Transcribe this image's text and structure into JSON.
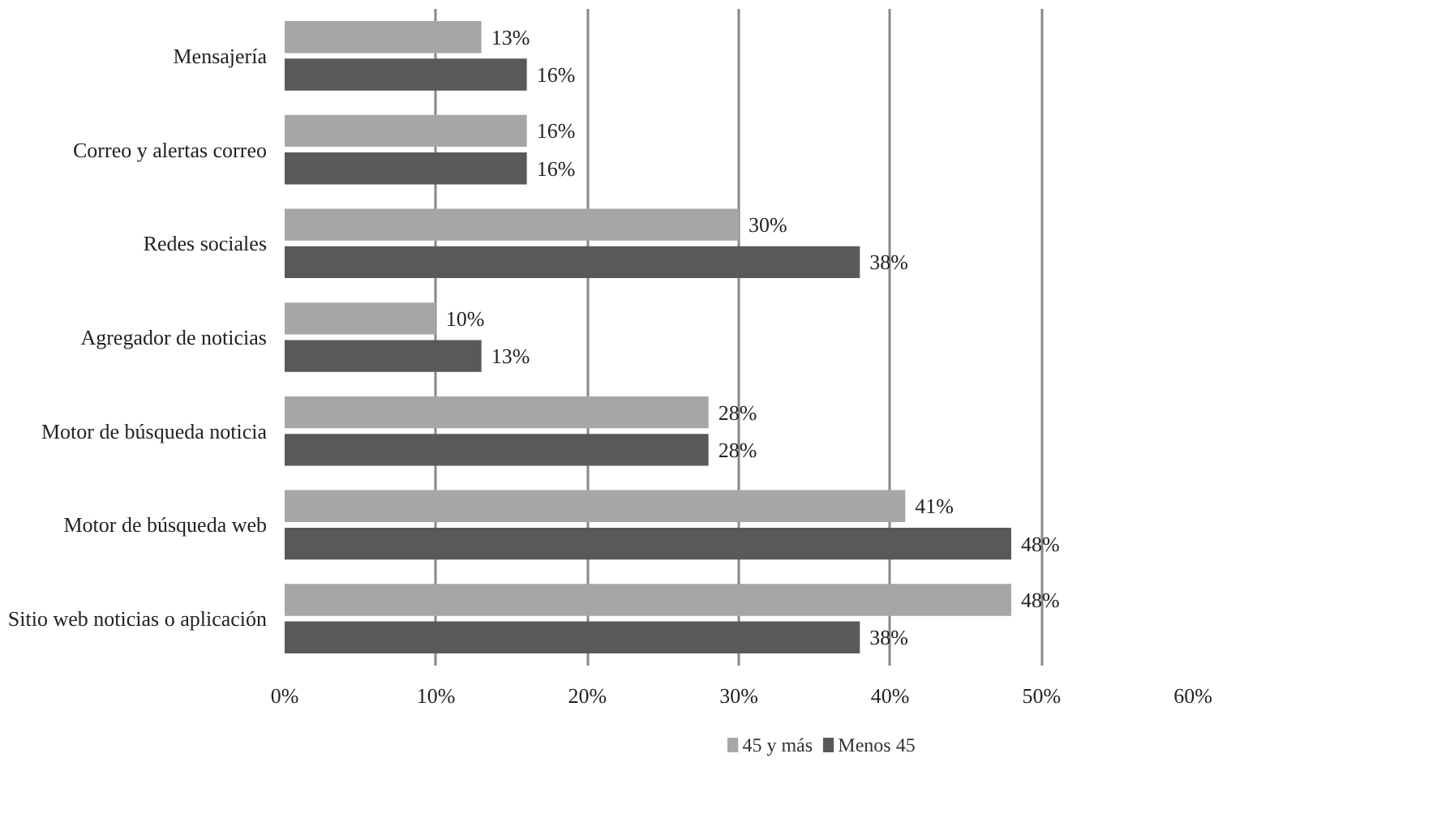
{
  "chart_data": {
    "type": "bar",
    "orientation": "horizontal",
    "categories": [
      "Mensajería",
      "Correo y alertas correo",
      "Redes sociales",
      "Agregador de noticias",
      "Motor de búsqueda noticia",
      "Motor de búsqueda web",
      "Sitio web noticias o aplicación"
    ],
    "series": [
      {
        "name": "45 y más",
        "color": "#a6a6a6",
        "values": [
          13,
          16,
          30,
          10,
          28,
          41,
          48
        ],
        "value_labels": [
          "13%",
          "16%",
          "30%",
          "10%",
          "28%",
          "41%",
          "48%"
        ]
      },
      {
        "name": "Menos 45",
        "color": "#595959",
        "values": [
          16,
          16,
          38,
          13,
          28,
          48,
          38
        ],
        "value_labels": [
          "16%",
          "16%",
          "38%",
          "13%",
          "28%",
          "48%",
          "38%"
        ]
      }
    ],
    "xlim": [
      0,
      60
    ],
    "xticks": [
      {
        "value": 0,
        "label": "0%"
      },
      {
        "value": 10,
        "label": "10%"
      },
      {
        "value": 20,
        "label": "20%"
      },
      {
        "value": 30,
        "label": "30%"
      },
      {
        "value": 40,
        "label": "40%"
      },
      {
        "value": 50,
        "label": "50%"
      },
      {
        "value": 60,
        "label": "60%"
      }
    ],
    "grid": "x",
    "legend": "bottom"
  }
}
